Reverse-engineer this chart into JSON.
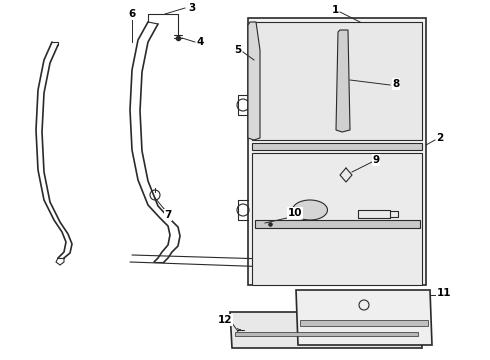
{
  "background_color": "#ffffff",
  "line_color": "#2a2a2a",
  "figsize": [
    4.9,
    3.6
  ],
  "dpi": 100,
  "label_fontsize": 7.5
}
